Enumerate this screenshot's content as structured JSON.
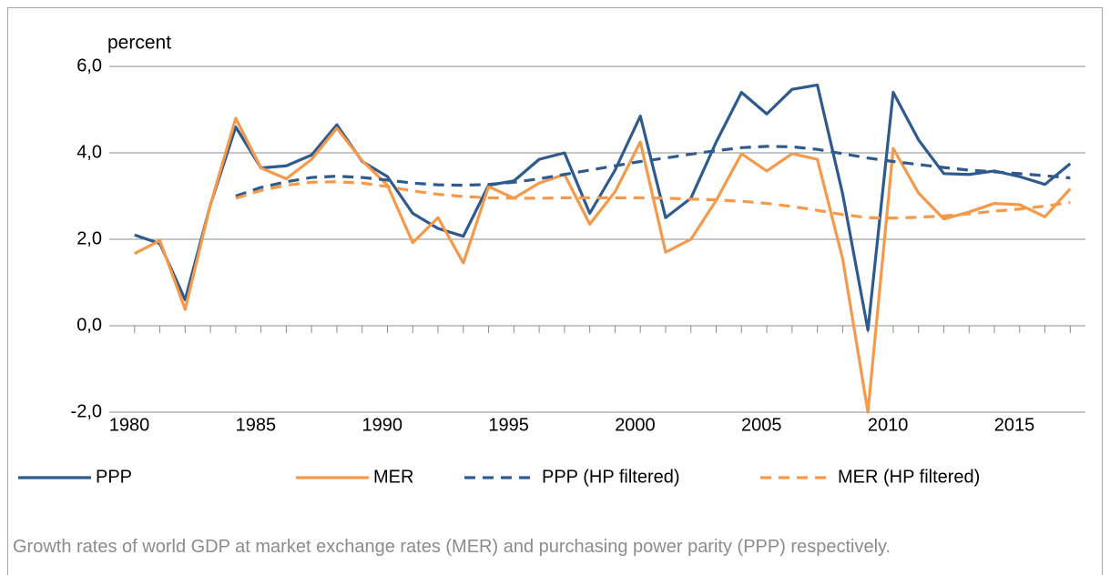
{
  "chart_data": {
    "type": "line",
    "y_label": "percent",
    "caption": "Growth rates of world GDP at market exchange rates (MER) and purchasing power parity (PPP) respectively.",
    "x": [
      1981,
      1982,
      1983,
      1984,
      1985,
      1986,
      1987,
      1988,
      1989,
      1990,
      1991,
      1992,
      1993,
      1994,
      1995,
      1996,
      1997,
      1998,
      1999,
      2000,
      2001,
      2002,
      2003,
      2004,
      2005,
      2006,
      2007,
      2008,
      2009,
      2010,
      2011,
      2012,
      2013,
      2014,
      2015,
      2016,
      2017,
      2018
    ],
    "xlim": [
      1980,
      2018.6
    ],
    "xticks": [
      1980,
      1985,
      1990,
      1995,
      2000,
      2005,
      2010,
      2015
    ],
    "ylim": [
      -2,
      6
    ],
    "yticks": [
      {
        "value": -2,
        "label": "-2,0"
      },
      {
        "value": 0,
        "label": "0,0"
      },
      {
        "value": 2,
        "label": "2,0"
      },
      {
        "value": 4,
        "label": "4,0"
      },
      {
        "value": 6,
        "label": "6,0"
      }
    ],
    "grid": true,
    "legend": "bottom",
    "series": [
      {
        "name": "PPP",
        "color": "#2f5a8e",
        "dashed": false,
        "values": [
          2.1,
          1.9,
          0.6,
          2.8,
          4.6,
          3.65,
          3.7,
          3.95,
          4.65,
          3.8,
          3.45,
          2.6,
          2.25,
          2.07,
          3.25,
          3.35,
          3.85,
          4.0,
          2.6,
          3.6,
          4.85,
          2.5,
          2.95,
          4.25,
          5.4,
          4.9,
          5.47,
          5.57,
          3.05,
          -0.1,
          5.4,
          4.3,
          3.52,
          3.5,
          3.58,
          3.45,
          3.27,
          3.75
        ]
      },
      {
        "name": "MER",
        "color": "#f5994a",
        "dashed": false,
        "values": [
          1.67,
          1.97,
          0.38,
          2.8,
          4.8,
          3.65,
          3.4,
          3.85,
          4.57,
          3.82,
          3.25,
          1.92,
          2.5,
          1.45,
          3.22,
          2.95,
          3.3,
          3.5,
          2.35,
          3.1,
          4.25,
          1.7,
          2.0,
          2.9,
          3.98,
          3.58,
          3.98,
          3.85,
          1.55,
          -2.0,
          4.1,
          3.07,
          2.47,
          2.63,
          2.83,
          2.8,
          2.52,
          3.17
        ]
      },
      {
        "name": "PPP (HP filtered)",
        "color": "#2f5a8e",
        "dashed": true,
        "values": [
          null,
          null,
          null,
          null,
          3.0,
          3.2,
          3.33,
          3.43,
          3.46,
          3.43,
          3.37,
          3.3,
          3.26,
          3.25,
          3.27,
          3.32,
          3.4,
          3.5,
          3.6,
          3.7,
          3.8,
          3.88,
          3.97,
          4.05,
          4.12,
          4.15,
          4.14,
          4.08,
          3.98,
          3.88,
          3.8,
          3.73,
          3.66,
          3.6,
          3.56,
          3.52,
          3.47,
          3.42
        ]
      },
      {
        "name": "MER (HP filtered)",
        "color": "#f5994a",
        "dashed": true,
        "values": [
          null,
          null,
          null,
          null,
          2.95,
          3.13,
          3.25,
          3.32,
          3.33,
          3.3,
          3.22,
          3.12,
          3.04,
          2.99,
          2.96,
          2.95,
          2.95,
          2.96,
          2.96,
          2.96,
          2.96,
          2.95,
          2.93,
          2.91,
          2.88,
          2.83,
          2.76,
          2.67,
          2.57,
          2.5,
          2.49,
          2.51,
          2.54,
          2.59,
          2.65,
          2.7,
          2.77,
          2.85
        ]
      }
    ]
  }
}
